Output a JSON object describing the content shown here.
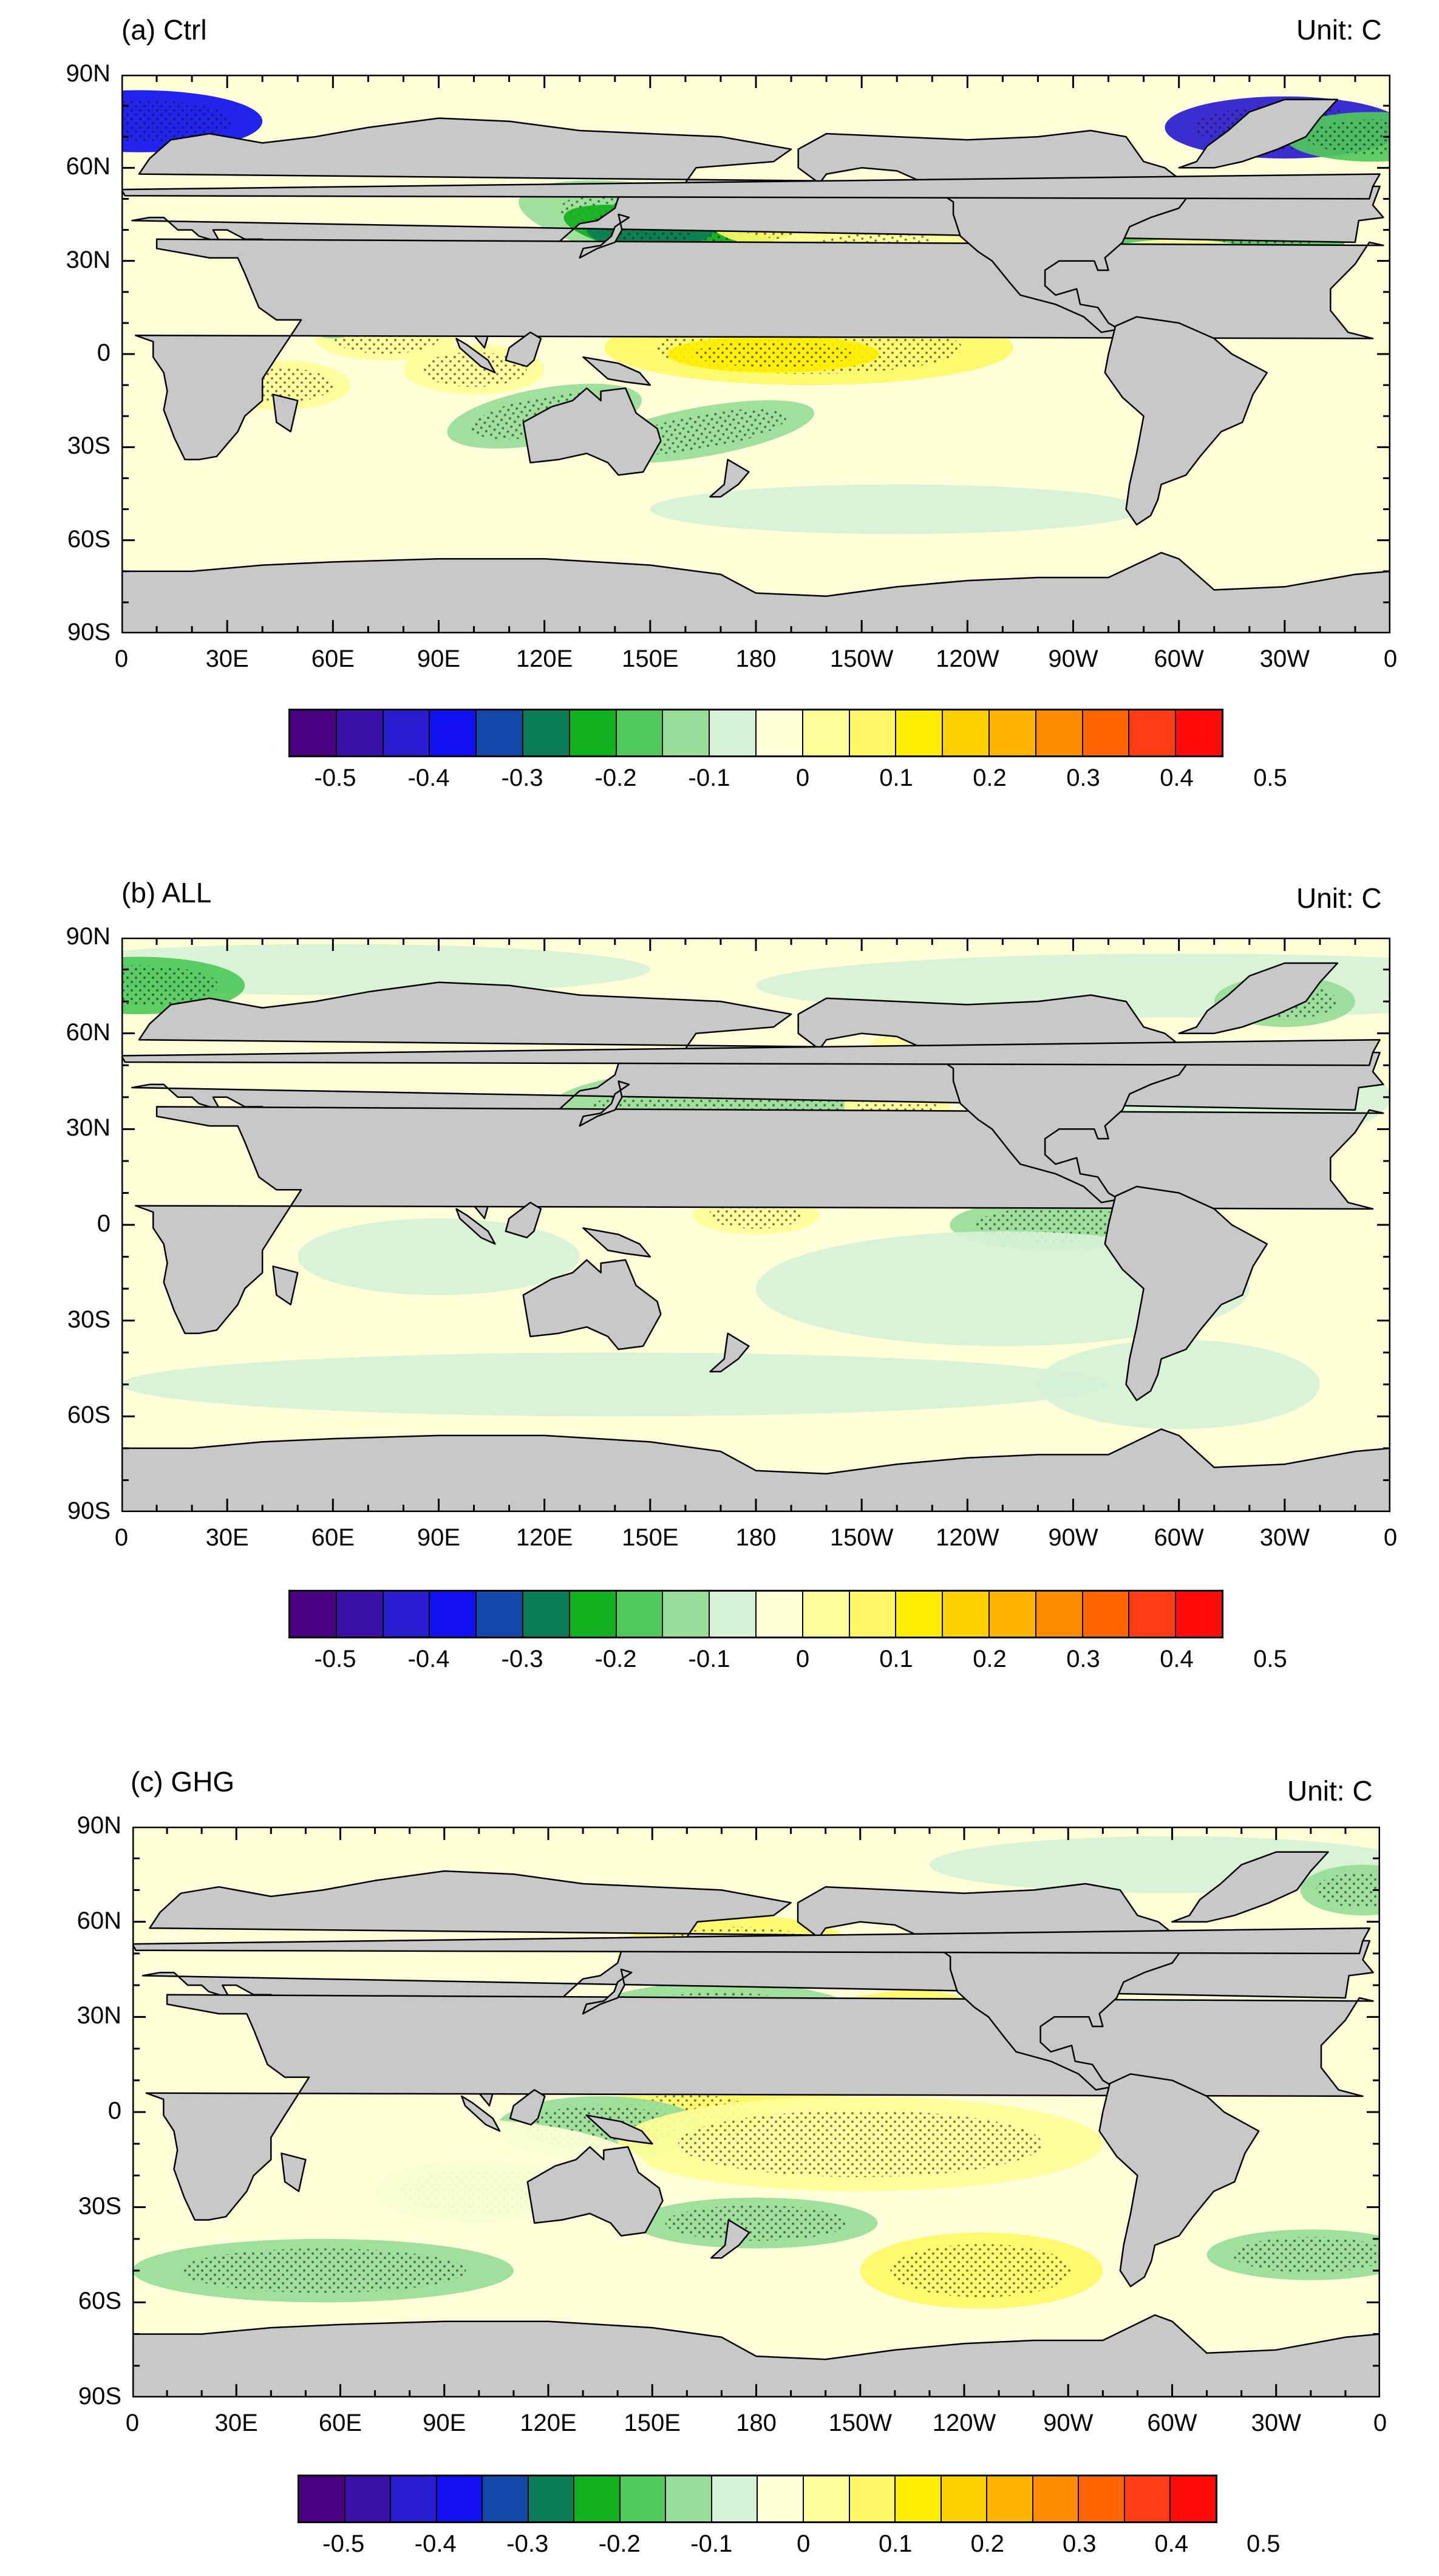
{
  "figure": {
    "panels": [
      {
        "title": "(a) Ctrl",
        "unit": "Unit: C"
      },
      {
        "title": "(b) ALL",
        "unit": "Unit: C"
      },
      {
        "title": "(c) GHG",
        "unit": "Unit: C"
      }
    ],
    "lat_labels": [
      "90N",
      "60N",
      "30N",
      "0",
      "30S",
      "60S",
      "90S"
    ],
    "lon_labels": [
      "0",
      "30E",
      "60E",
      "90E",
      "120E",
      "150E",
      "180",
      "150W",
      "120W",
      "90W",
      "60W",
      "30W",
      "0"
    ],
    "colorbar": {
      "labels": [
        "-0.5",
        "-0.4",
        "-0.3",
        "-0.2",
        "-0.1",
        "0",
        "0.1",
        "0.2",
        "0.3",
        "0.4",
        "0.5"
      ],
      "colors": [
        "#4b0082",
        "#3b10a8",
        "#2a1ccf",
        "#1010f0",
        "#1448a8",
        "#0a7d56",
        "#11b01e",
        "#4fc95a",
        "#97dd97",
        "#d6f2d6",
        "#ffffd8",
        "#ffff99",
        "#fff866",
        "#ffee00",
        "#ffd000",
        "#ffb400",
        "#ff8c00",
        "#ff6400",
        "#ff3c14",
        "#ff0a0a"
      ]
    },
    "colors": {
      "land": "#c8c8c8",
      "ocean_default": "#fafad2",
      "stipple": "#111111"
    }
  }
}
